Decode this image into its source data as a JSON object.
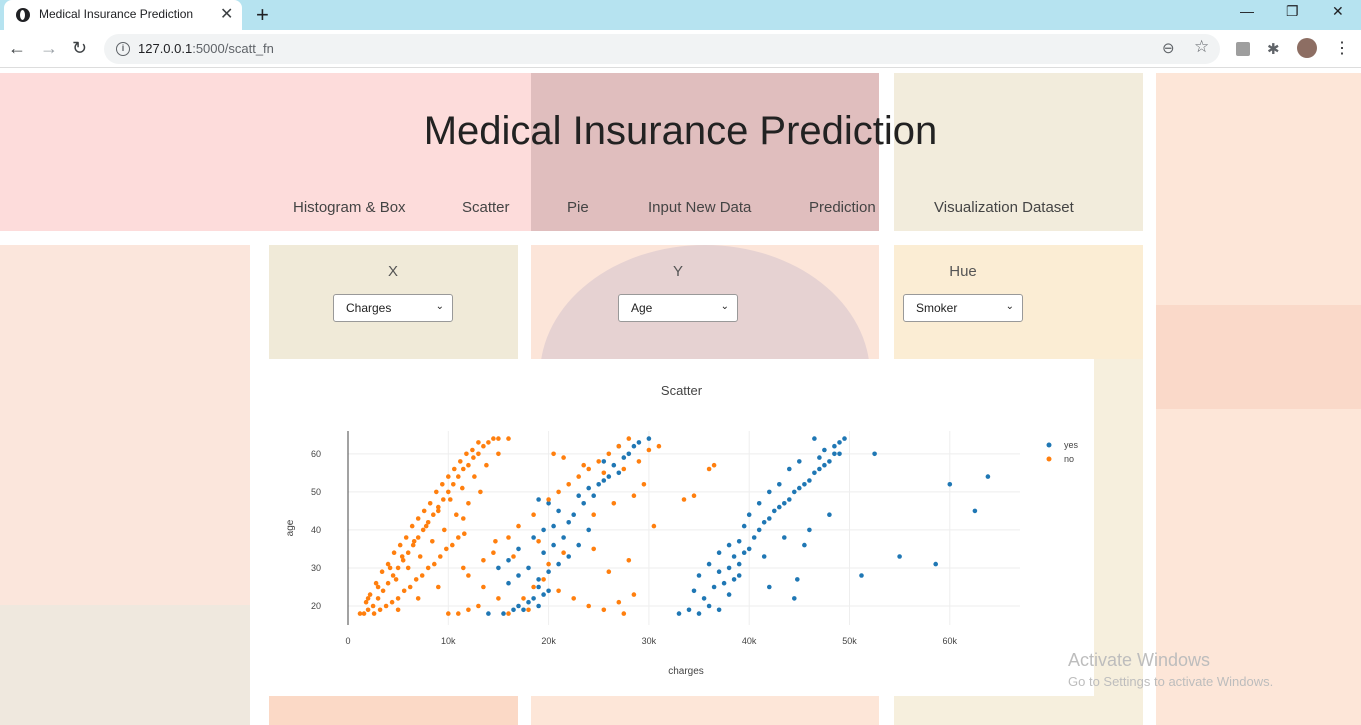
{
  "browser": {
    "tab_title": "Medical Insurance Prediction",
    "close_glyph": "✕",
    "new_tab_glyph": "+",
    "url_host": "127.0.0.1",
    "url_path": ":5000/scatt_fn",
    "win_min": "—",
    "win_restore": "❐",
    "win_close": "✕",
    "back_glyph": "←",
    "forward_glyph": "→",
    "reload_glyph": "↻",
    "info_glyph": "i",
    "zoom_glyph": "⊖",
    "star_glyph": "☆",
    "ext_glyph": "✱",
    "menu_glyph": "⋮"
  },
  "page": {
    "title": "Medical Insurance Prediction",
    "nav": [
      "Histogram & Box",
      "Scatter",
      "Pie",
      "Input New Data",
      "Prediction",
      "Visualization Dataset"
    ],
    "controls": [
      {
        "label": "X",
        "value": "Charges"
      },
      {
        "label": "Y",
        "value": "Age"
      },
      {
        "label": "Hue",
        "value": "Smoker"
      }
    ],
    "chevron": "⌄"
  },
  "chart_data": {
    "type": "scatter",
    "title": "Scatter",
    "xlabel": "charges",
    "ylabel": "age",
    "xlim": [
      0,
      67000
    ],
    "ylim": [
      15,
      66
    ],
    "xticks": [
      0,
      10000,
      20000,
      30000,
      40000,
      50000,
      60000
    ],
    "xtick_labels": [
      "0",
      "10k",
      "20k",
      "30k",
      "40k",
      "50k",
      "60k"
    ],
    "yticks": [
      20,
      30,
      40,
      50,
      60
    ],
    "grid": true,
    "legend_position": "top-right",
    "series": [
      {
        "name": "yes",
        "color": "#1f77b4",
        "points": [
          [
            14000,
            18
          ],
          [
            15500,
            18
          ],
          [
            16500,
            19
          ],
          [
            17000,
            20
          ],
          [
            17500,
            19
          ],
          [
            18000,
            21
          ],
          [
            18500,
            22
          ],
          [
            19000,
            20
          ],
          [
            19500,
            23
          ],
          [
            20000,
            24
          ],
          [
            16000,
            26
          ],
          [
            17000,
            28
          ],
          [
            18000,
            30
          ],
          [
            19000,
            27
          ],
          [
            20000,
            29
          ],
          [
            21000,
            31
          ],
          [
            22000,
            33
          ],
          [
            19500,
            34
          ],
          [
            20500,
            36
          ],
          [
            21500,
            38
          ],
          [
            18500,
            38
          ],
          [
            19500,
            40
          ],
          [
            20500,
            41
          ],
          [
            22000,
            42
          ],
          [
            22500,
            44
          ],
          [
            21000,
            45
          ],
          [
            20000,
            47
          ],
          [
            19000,
            48
          ],
          [
            23000,
            49
          ],
          [
            24000,
            51
          ],
          [
            25000,
            52
          ],
          [
            25500,
            53
          ],
          [
            26000,
            54
          ],
          [
            27000,
            55
          ],
          [
            26500,
            57
          ],
          [
            25500,
            58
          ],
          [
            27500,
            59
          ],
          [
            28000,
            60
          ],
          [
            27000,
            62
          ],
          [
            28500,
            62
          ],
          [
            29000,
            63
          ],
          [
            30000,
            64
          ],
          [
            23500,
            47
          ],
          [
            24500,
            49
          ],
          [
            16000,
            32
          ],
          [
            15000,
            30
          ],
          [
            17000,
            35
          ],
          [
            19000,
            25
          ],
          [
            23000,
            36
          ],
          [
            24000,
            40
          ],
          [
            33000,
            18
          ],
          [
            34000,
            19
          ],
          [
            35000,
            18
          ],
          [
            36000,
            20
          ],
          [
            37000,
            19
          ],
          [
            35500,
            22
          ],
          [
            34500,
            24
          ],
          [
            36500,
            25
          ],
          [
            37500,
            26
          ],
          [
            38500,
            27
          ],
          [
            37000,
            29
          ],
          [
            38000,
            30
          ],
          [
            39000,
            31
          ],
          [
            38500,
            33
          ],
          [
            39500,
            34
          ],
          [
            40000,
            35
          ],
          [
            39000,
            37
          ],
          [
            40500,
            38
          ],
          [
            41000,
            40
          ],
          [
            41500,
            42
          ],
          [
            42000,
            43
          ],
          [
            42500,
            45
          ],
          [
            43000,
            46
          ],
          [
            43500,
            47
          ],
          [
            44000,
            48
          ],
          [
            44500,
            50
          ],
          [
            45000,
            51
          ],
          [
            45500,
            52
          ],
          [
            46000,
            53
          ],
          [
            46500,
            55
          ],
          [
            47000,
            56
          ],
          [
            47500,
            57
          ],
          [
            48000,
            58
          ],
          [
            48500,
            60
          ],
          [
            47500,
            61
          ],
          [
            48500,
            62
          ],
          [
            49000,
            63
          ],
          [
            46500,
            64
          ],
          [
            49500,
            64
          ],
          [
            45000,
            58
          ],
          [
            44000,
            56
          ],
          [
            43000,
            52
          ],
          [
            42000,
            50
          ],
          [
            41000,
            47
          ],
          [
            40000,
            44
          ],
          [
            39500,
            41
          ],
          [
            38000,
            36
          ],
          [
            37000,
            34
          ],
          [
            36000,
            31
          ],
          [
            35000,
            28
          ],
          [
            44500,
            22
          ],
          [
            44800,
            27
          ],
          [
            42000,
            25
          ],
          [
            39000,
            28
          ],
          [
            38000,
            23
          ],
          [
            47000,
            59
          ],
          [
            49000,
            60
          ],
          [
            48000,
            44
          ],
          [
            46000,
            40
          ],
          [
            45500,
            36
          ],
          [
            43500,
            38
          ],
          [
            41500,
            33
          ],
          [
            52500,
            60
          ],
          [
            51200,
            28
          ],
          [
            55000,
            33
          ],
          [
            58600,
            31
          ],
          [
            60000,
            52
          ],
          [
            62500,
            45
          ],
          [
            63800,
            54
          ]
        ]
      },
      {
        "name": "no",
        "color": "#ff7f0e",
        "points": [
          [
            1200,
            18
          ],
          [
            1600,
            18
          ],
          [
            2000,
            19
          ],
          [
            2500,
            20
          ],
          [
            3000,
            22
          ],
          [
            3500,
            24
          ],
          [
            4000,
            26
          ],
          [
            4500,
            28
          ],
          [
            5000,
            30
          ],
          [
            5500,
            32
          ],
          [
            6000,
            34
          ],
          [
            6500,
            36
          ],
          [
            7000,
            38
          ],
          [
            7500,
            40
          ],
          [
            8000,
            42
          ],
          [
            8500,
            44
          ],
          [
            9000,
            46
          ],
          [
            9500,
            48
          ],
          [
            10000,
            50
          ],
          [
            10500,
            52
          ],
          [
            11000,
            54
          ],
          [
            11500,
            56
          ],
          [
            12000,
            57
          ],
          [
            12500,
            59
          ],
          [
            13000,
            60
          ],
          [
            13500,
            62
          ],
          [
            14000,
            63
          ],
          [
            14500,
            64
          ],
          [
            15000,
            64
          ],
          [
            16000,
            64
          ],
          [
            2200,
            23
          ],
          [
            2800,
            26
          ],
          [
            3400,
            29
          ],
          [
            4000,
            31
          ],
          [
            4600,
            34
          ],
          [
            5200,
            36
          ],
          [
            5800,
            38
          ],
          [
            6400,
            41
          ],
          [
            7000,
            43
          ],
          [
            7600,
            45
          ],
          [
            8200,
            47
          ],
          [
            8800,
            50
          ],
          [
            9400,
            52
          ],
          [
            10000,
            54
          ],
          [
            10600,
            56
          ],
          [
            11200,
            58
          ],
          [
            11800,
            60
          ],
          [
            12400,
            61
          ],
          [
            13000,
            63
          ],
          [
            1800,
            21
          ],
          [
            3200,
            19
          ],
          [
            4400,
            21
          ],
          [
            5600,
            24
          ],
          [
            6800,
            27
          ],
          [
            8000,
            30
          ],
          [
            9200,
            33
          ],
          [
            10400,
            36
          ],
          [
            11600,
            39
          ],
          [
            2600,
            18
          ],
          [
            3800,
            20
          ],
          [
            5000,
            22
          ],
          [
            6200,
            25
          ],
          [
            7400,
            28
          ],
          [
            8600,
            31
          ],
          [
            9800,
            35
          ],
          [
            11000,
            38
          ],
          [
            4800,
            27
          ],
          [
            6000,
            30
          ],
          [
            7200,
            33
          ],
          [
            8400,
            37
          ],
          [
            9600,
            40
          ],
          [
            10800,
            44
          ],
          [
            12000,
            47
          ],
          [
            13200,
            50
          ],
          [
            2000,
            22
          ],
          [
            3000,
            25
          ],
          [
            4200,
            30
          ],
          [
            5400,
            33
          ],
          [
            6600,
            37
          ],
          [
            7800,
            41
          ],
          [
            9000,
            45
          ],
          [
            10200,
            48
          ],
          [
            11400,
            51
          ],
          [
            12600,
            54
          ],
          [
            13800,
            57
          ],
          [
            15000,
            60
          ],
          [
            5000,
            19
          ],
          [
            7000,
            22
          ],
          [
            9000,
            25
          ],
          [
            12000,
            28
          ],
          [
            13500,
            32
          ],
          [
            11500,
            30
          ],
          [
            14500,
            34
          ],
          [
            16000,
            38
          ],
          [
            17000,
            41
          ],
          [
            18500,
            44
          ],
          [
            20000,
            48
          ],
          [
            21000,
            50
          ],
          [
            22000,
            52
          ],
          [
            23000,
            54
          ],
          [
            24000,
            56
          ],
          [
            25000,
            58
          ],
          [
            26000,
            60
          ],
          [
            27000,
            62
          ],
          [
            28000,
            64
          ],
          [
            20500,
            60
          ],
          [
            21500,
            59
          ],
          [
            23500,
            57
          ],
          [
            25500,
            55
          ],
          [
            27500,
            56
          ],
          [
            29000,
            58
          ],
          [
            30000,
            61
          ],
          [
            31000,
            62
          ],
          [
            10000,
            18
          ],
          [
            11000,
            18
          ],
          [
            12000,
            19
          ],
          [
            13000,
            20
          ],
          [
            17500,
            22
          ],
          [
            18500,
            25
          ],
          [
            19500,
            27
          ],
          [
            21000,
            24
          ],
          [
            22500,
            22
          ],
          [
            24000,
            20
          ],
          [
            25500,
            19
          ],
          [
            27000,
            21
          ],
          [
            28500,
            23
          ],
          [
            16500,
            33
          ],
          [
            19000,
            37
          ],
          [
            20000,
            31
          ],
          [
            24500,
            44
          ],
          [
            26500,
            47
          ],
          [
            28500,
            49
          ],
          [
            29500,
            52
          ],
          [
            30500,
            41
          ],
          [
            28000,
            32
          ],
          [
            24500,
            35
          ],
          [
            18000,
            19
          ],
          [
            15000,
            22
          ],
          [
            13500,
            25
          ],
          [
            27500,
            18
          ],
          [
            33500,
            48
          ],
          [
            34500,
            49
          ],
          [
            36000,
            56
          ],
          [
            36500,
            57
          ],
          [
            26000,
            29
          ],
          [
            21500,
            34
          ],
          [
            16000,
            18
          ],
          [
            11500,
            43
          ],
          [
            14700,
            37
          ]
        ]
      }
    ]
  }
}
